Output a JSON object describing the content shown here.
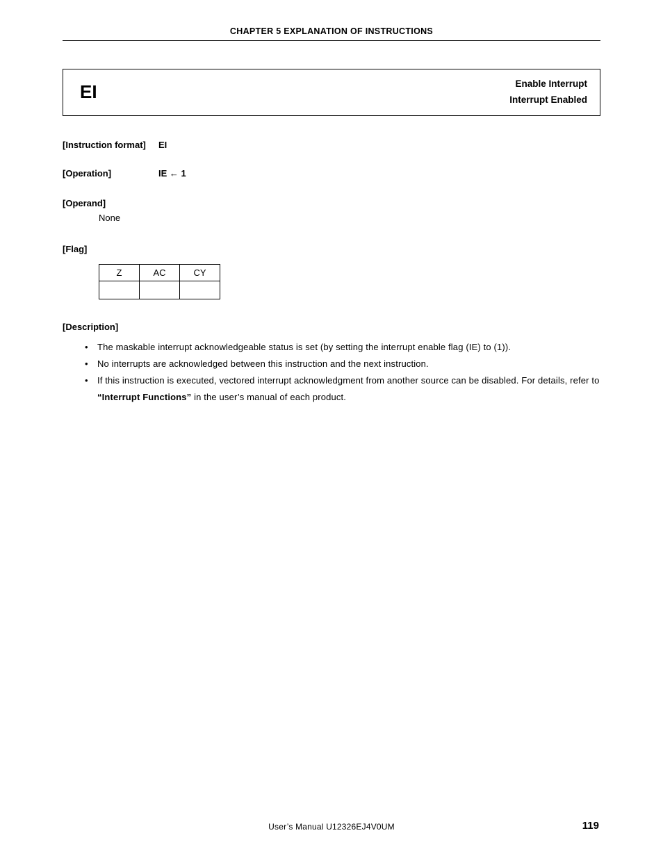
{
  "header": {
    "chapter": "CHAPTER 5  EXPLANATION OF INSTRUCTIONS"
  },
  "title_box": {
    "mnemonic": "EI",
    "english": "Enable Interrupt",
    "function": "Interrupt Enabled"
  },
  "instruction_format": {
    "label": "[Instruction format]",
    "value": "EI"
  },
  "operation": {
    "label": "[Operation]",
    "value": "IE ← 1"
  },
  "operand": {
    "label": "[Operand]",
    "value": "None"
  },
  "flag": {
    "label": "[Flag]",
    "columns": [
      "Z",
      "AC",
      "CY"
    ],
    "row": [
      "",
      "",
      ""
    ]
  },
  "description": {
    "label": "[Description]",
    "bullets": [
      {
        "pre": "The maskable interrupt acknowledgeable status is set (by setting the interrupt enable flag (IE) to (1)).",
        "bold": "",
        "post": ""
      },
      {
        "pre": "No interrupts are acknowledged between this instruction and the next instruction.",
        "bold": "",
        "post": ""
      },
      {
        "pre": "If this instruction is executed, vectored interrupt acknowledgment from another source can be disabled.  For details, refer to ",
        "bold": "“Interrupt Functions”",
        "post": " in the user’s manual of each product."
      }
    ]
  },
  "footer": {
    "center": "User’s Manual  U12326EJ4V0UM",
    "page": "119"
  }
}
